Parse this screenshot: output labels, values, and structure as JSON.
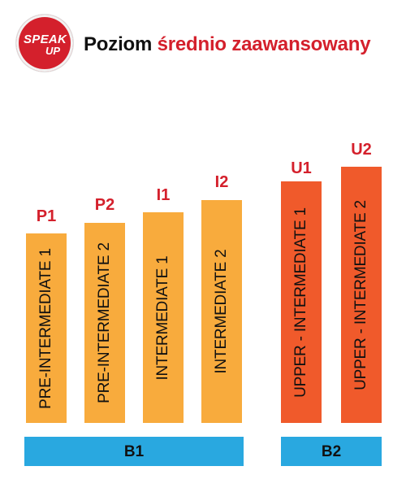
{
  "logo": {
    "line1": "SPEAK",
    "line2": "UP"
  },
  "title": {
    "part1": "Poziom",
    "part2": "średnio zaawansowany"
  },
  "colors": {
    "orange_light": "#f8ab3d",
    "orange_dark": "#f05a2b",
    "blue": "#29a8e0",
    "red": "#d4202c"
  },
  "levels": [
    {
      "code": "P1",
      "name": "PRE-INTERMEDIATE 1",
      "rank": 1,
      "color": "#f8ab3d"
    },
    {
      "code": "P2",
      "name": "PRE-INTERMEDIATE 2",
      "rank": 2,
      "color": "#f8ab3d"
    },
    {
      "code": "I1",
      "name": "INTERMEDIATE 1",
      "rank": 3,
      "color": "#f8ab3d"
    },
    {
      "code": "I2",
      "name": "INTERMEDIATE 2",
      "rank": 4,
      "color": "#f8ab3d"
    },
    {
      "code": "U1",
      "name": "UPPER - INTERMEDIATE 1",
      "rank": 5,
      "color": "#f05a2b"
    },
    {
      "code": "U2",
      "name": "UPPER - INTERMEDIATE 2",
      "rank": 6,
      "color": "#f05a2b"
    }
  ],
  "groups": [
    {
      "label": "B1"
    },
    {
      "label": "B2"
    }
  ]
}
